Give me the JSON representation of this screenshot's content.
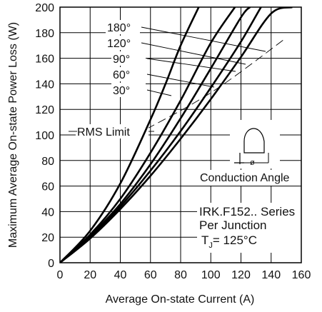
{
  "chart_data": {
    "type": "line",
    "title": "",
    "xlabel": "Average On-state Current (A)",
    "ylabel": "Maximum Average On-state Power Loss (W)",
    "xlim": [
      0,
      160
    ],
    "ylim": [
      0,
      200
    ],
    "xticks": [
      "0",
      "20",
      "40",
      "60",
      "80",
      "100",
      "120",
      "140",
      "160"
    ],
    "yticks": [
      "0",
      "20",
      "40",
      "60",
      "80",
      "100",
      "120",
      "140",
      "160",
      "180",
      "200"
    ],
    "grid": true,
    "series": [
      {
        "name": "30°",
        "x": [
          0,
          20,
          40,
          60,
          70,
          80,
          92
        ],
        "y": [
          0,
          25,
          62,
          112,
          140,
          170,
          200
        ]
      },
      {
        "name": "60°",
        "x": [
          0,
          20,
          40,
          60,
          80,
          100,
          116
        ],
        "y": [
          0,
          22,
          50,
          86,
          127,
          172,
          200
        ]
      },
      {
        "name": "90°",
        "x": [
          0,
          20,
          40,
          60,
          80,
          100,
          120,
          126
        ],
        "y": [
          0,
          21,
          46,
          77,
          113,
          152,
          192,
          200
        ]
      },
      {
        "name": "120°",
        "x": [
          0,
          20,
          40,
          60,
          80,
          100,
          120,
          140,
          143
        ],
        "y": [
          0,
          20,
          44,
          72,
          103,
          137,
          173,
          212,
          200
        ]
      },
      {
        "name": "180°",
        "x": [
          0,
          20,
          40,
          60,
          80,
          100,
          120,
          140,
          154
        ],
        "y": [
          0,
          19,
          42,
          68,
          97,
          128,
          161,
          195,
          200
        ]
      }
    ],
    "rms_limit": {
      "label": "RMS Limit",
      "x": [
        50,
        100,
        150
      ],
      "y": [
        100,
        133,
        176
      ]
    },
    "annotations": {
      "conduction_angle": "Conduction Angle",
      "conduction_symbol": "ø",
      "series_title": "IRK.F152.. Series",
      "per_junction": "Per Junction",
      "tj_prefix": "T",
      "tj_sub": "J",
      "tj_value": "= 125°C"
    }
  }
}
